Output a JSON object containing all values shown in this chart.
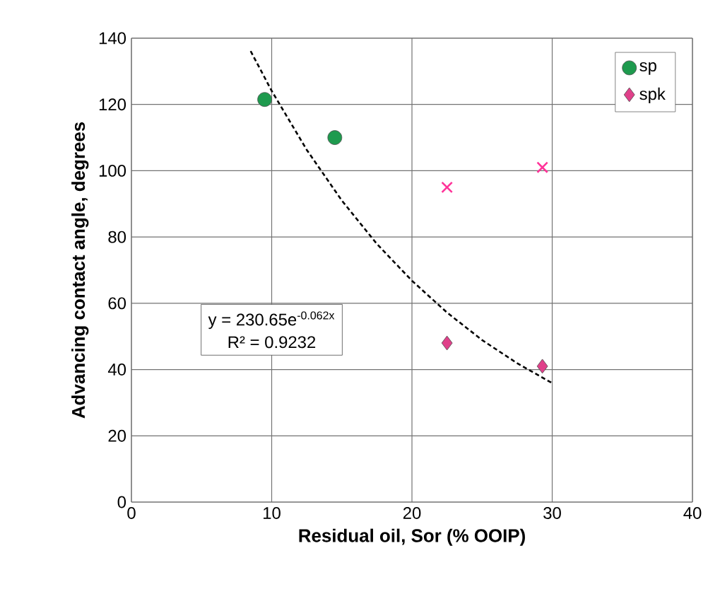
{
  "chart_data": {
    "type": "scatter",
    "xlabel": "Residual oil, Sor (% OOIP)",
    "ylabel": "Advancing contact angle, degrees",
    "xlim": [
      0,
      40
    ],
    "xticks": [
      0,
      10,
      20,
      30,
      40
    ],
    "ylim": [
      0,
      140
    ],
    "yticks": [
      0,
      20,
      40,
      60,
      80,
      100,
      120,
      140
    ],
    "grid": true,
    "legend": "top right",
    "annotations": [
      "y = 230.65e$^{-0.062x}$",
      "R² = 0.9232"
    ],
    "series": [
      {
        "name": "sp",
        "color": "#1e9a4e",
        "marker": "circle",
        "x": [
          9.5,
          14.5
        ],
        "values": [
          121.5,
          110
        ]
      },
      {
        "name": "spk",
        "color": "#e0408a",
        "marker": "diamond",
        "x": [
          22.5,
          29.3
        ],
        "values": [
          48,
          41
        ]
      },
      {
        "color": "#ff3399",
        "marker": "cross",
        "x": [
          22.5,
          29.3
        ],
        "values": [
          95,
          101
        ]
      },
      {
        "type": "line",
        "color": "#000000",
        "line_style": "dashed",
        "marker": "none",
        "x": [
          8.5,
          10,
          12.5,
          15,
          17.5,
          20,
          22.5,
          25,
          27.5,
          30
        ],
        "values": [
          136.1,
          124.1,
          106.3,
          91.0,
          77.9,
          66.8,
          57.2,
          48.9,
          41.9,
          35.9
        ]
      }
    ]
  }
}
